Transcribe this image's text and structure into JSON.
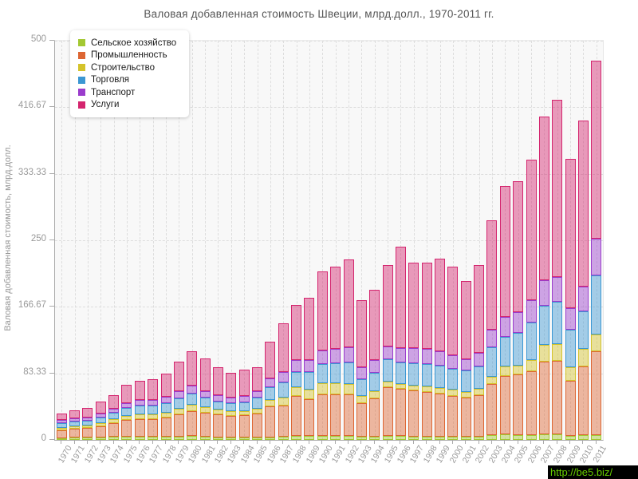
{
  "watermark": {
    "text": "http://be5.biz/"
  },
  "chart_data": {
    "type": "bar",
    "stacked": true,
    "title": "Валовая добавленная стоимость Швеции, млрд.долл., 1970-2011 гг.",
    "ylabel": "Валовая добавленная стоимость, млрд.долл.",
    "xlabel": "",
    "ylim": [
      0,
      500
    ],
    "grid": "dashed horizontal and vertical",
    "legend_position": "top-left inside plot",
    "y_ticks": [
      {
        "label": "0",
        "value": 0
      },
      {
        "label": "83.33",
        "value": 83.33
      },
      {
        "label": "166.67",
        "value": 166.67
      },
      {
        "label": "250",
        "value": 250
      },
      {
        "label": "333.33",
        "value": 333.33
      },
      {
        "label": "416.67",
        "value": 416.67
      },
      {
        "label": "500",
        "value": 500
      }
    ],
    "categories": [
      "1970",
      "1971",
      "1972",
      "1973",
      "1974",
      "1975",
      "1976",
      "1977",
      "1978",
      "1979",
      "1980",
      "1981",
      "1982",
      "1983",
      "1984",
      "1985",
      "1986",
      "1987",
      "1988",
      "1989",
      "1990",
      "1991",
      "1992",
      "1993",
      "1994",
      "1995",
      "1996",
      "1997",
      "1998",
      "1999",
      "2000",
      "2001",
      "2002",
      "2003",
      "2004",
      "2005",
      "2006",
      "2007",
      "2008",
      "2009",
      "2010",
      "2011"
    ],
    "series": [
      {
        "key": "agriculture",
        "name": "Сельское хозяйство",
        "color": "#a3c832",
        "values": [
          2,
          3,
          3,
          3,
          4,
          4,
          4,
          4,
          4,
          4,
          5,
          4,
          3,
          3,
          3,
          3,
          3,
          4,
          5,
          5,
          5,
          5,
          5,
          4,
          4,
          5,
          5,
          4,
          4,
          4,
          4,
          4,
          4,
          6,
          7,
          6,
          6,
          7,
          7,
          5,
          6,
          6
        ]
      },
      {
        "key": "industry",
        "name": "Промышленность",
        "color": "#dd6633",
        "values": [
          10,
          11,
          12,
          14,
          17,
          21,
          22,
          22,
          24,
          28,
          31,
          30,
          29,
          27,
          28,
          30,
          39,
          39,
          50,
          46,
          52,
          52,
          52,
          42,
          48,
          61,
          59,
          58,
          56,
          54,
          51,
          49,
          52,
          64,
          73,
          76,
          80,
          91,
          92,
          69,
          86,
          105
        ]
      },
      {
        "key": "construction",
        "name": "Строительство",
        "color": "#d4c32b",
        "values": [
          3,
          3,
          3,
          4,
          5,
          5,
          6,
          6,
          6,
          7,
          8,
          7,
          6,
          6,
          5,
          6,
          8,
          10,
          11,
          12,
          14,
          14,
          13,
          9,
          9,
          7,
          6,
          6,
          7,
          7,
          8,
          7,
          8,
          9,
          12,
          11,
          14,
          21,
          21,
          17,
          22,
          21
        ]
      },
      {
        "key": "trade",
        "name": "Торговля",
        "color": "#3b97d3",
        "values": [
          6,
          6,
          6,
          7,
          8,
          10,
          11,
          11,
          12,
          13,
          14,
          12,
          10,
          10,
          11,
          14,
          16,
          19,
          19,
          22,
          24,
          25,
          27,
          21,
          23,
          28,
          27,
          28,
          28,
          28,
          26,
          27,
          28,
          37,
          37,
          41,
          47,
          49,
          53,
          47,
          47,
          74
        ]
      },
      {
        "key": "transport",
        "name": "Транспорт",
        "color": "#9a3ccc",
        "values": [
          4,
          4,
          4,
          5,
          5,
          6,
          7,
          7,
          8,
          9,
          10,
          8,
          8,
          7,
          8,
          8,
          11,
          13,
          15,
          15,
          17,
          18,
          19,
          15,
          16,
          16,
          18,
          19,
          19,
          18,
          17,
          14,
          17,
          22,
          25,
          26,
          28,
          32,
          31,
          27,
          31,
          46
        ]
      },
      {
        "key": "services",
        "name": "Услуги",
        "color": "#d4256e",
        "values": [
          8,
          10,
          12,
          15,
          17,
          23,
          24,
          26,
          29,
          37,
          43,
          41,
          35,
          31,
          33,
          30,
          46,
          61,
          69,
          78,
          99,
          103,
          110,
          84,
          88,
          102,
          127,
          107,
          108,
          116,
          111,
          98,
          110,
          137,
          164,
          164,
          176,
          205,
          222,
          187,
          208,
          223
        ]
      }
    ]
  }
}
